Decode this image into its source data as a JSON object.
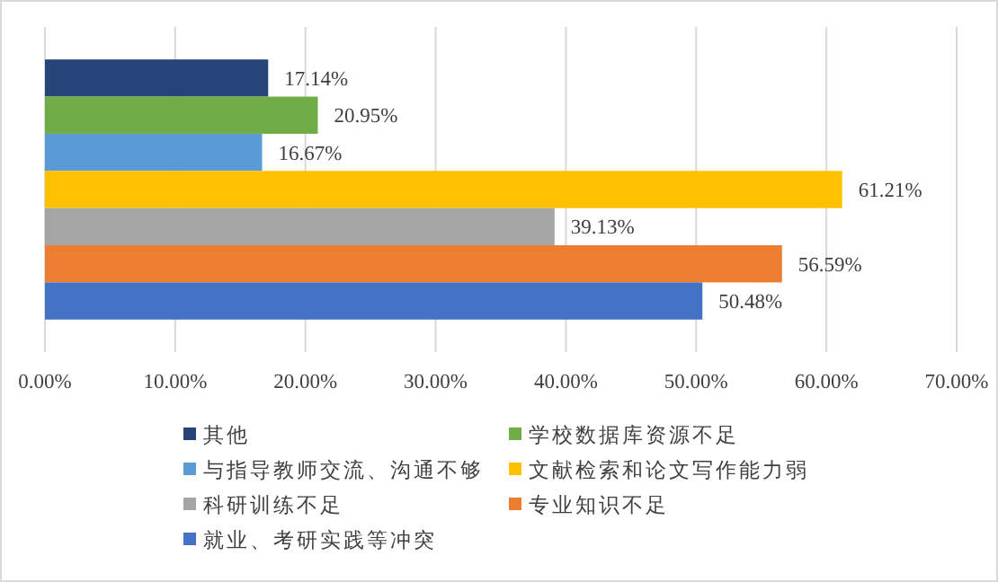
{
  "chart_data": {
    "type": "bar",
    "orientation": "horizontal",
    "categories": [
      null
    ],
    "series": [
      {
        "name": "其他",
        "color": "#264478",
        "values": [
          17.14
        ],
        "value_labels": [
          "17.14%"
        ]
      },
      {
        "name": "学校数据库资源不足",
        "color": "#70ad47",
        "values": [
          20.95
        ],
        "value_labels": [
          "20.95%"
        ]
      },
      {
        "name": "与指导教师交流、沟通不够",
        "color": "#5b9bd5",
        "values": [
          16.67
        ],
        "value_labels": [
          "16.67%"
        ]
      },
      {
        "name": "文献检索和论文写作能力弱",
        "color": "#ffc000",
        "values": [
          61.21
        ],
        "value_labels": [
          "61.21%"
        ]
      },
      {
        "name": "科研训练不足",
        "color": "#a5a5a5",
        "values": [
          39.13
        ],
        "value_labels": [
          "39.13%"
        ]
      },
      {
        "name": "专业知识不足",
        "color": "#ed7d31",
        "values": [
          56.59
        ],
        "value_labels": [
          "56.59%"
        ]
      },
      {
        "name": "就业、考研实践等冲突",
        "color": "#4472c4",
        "values": [
          50.48
        ],
        "value_labels": [
          "50.48%"
        ]
      }
    ],
    "xlim": [
      0,
      70
    ],
    "xticks": [
      {
        "value": 0,
        "label": "0.00%"
      },
      {
        "value": 10,
        "label": "10.00%"
      },
      {
        "value": 20,
        "label": "20.00%"
      },
      {
        "value": 30,
        "label": "30.00%"
      },
      {
        "value": 40,
        "label": "40.00%"
      },
      {
        "value": 50,
        "label": "50.00%"
      },
      {
        "value": 60,
        "label": "60.00%"
      },
      {
        "value": 70,
        "label": "70.00%"
      }
    ],
    "grid": "x",
    "legend": "bottom"
  }
}
